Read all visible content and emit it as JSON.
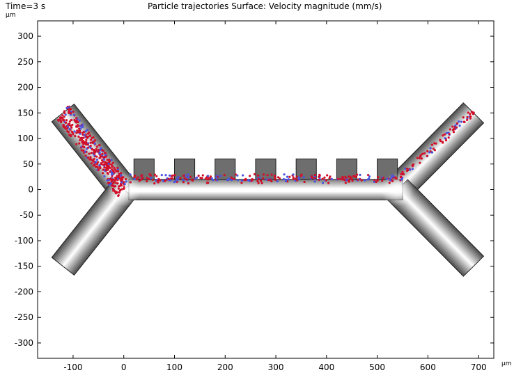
{
  "header": {
    "time": "Time=3 s",
    "title": "Particle trajectories  Surface: Velocity magnitude (mm/s)"
  },
  "chart_data": {
    "type": "surface",
    "title": "Particle trajectories  Surface: Velocity magnitude (mm/s)",
    "time_label": "Time=3 s",
    "x_unit": "µm",
    "y_unit": "µm",
    "xlim": [
      -170,
      730
    ],
    "ylim": [
      -330,
      330
    ],
    "x_ticks": [
      -100,
      0,
      100,
      200,
      300,
      400,
      500,
      600,
      700
    ],
    "y_ticks": [
      300,
      250,
      200,
      150,
      100,
      50,
      0,
      -50,
      -100,
      -150,
      -200,
      -250,
      -300
    ],
    "grid": false,
    "geometry": {
      "channel_half_height": 20,
      "side_chamber_top": 60,
      "side_chambers": [
        {
          "x_start": 20,
          "x_end": 60
        },
        {
          "x_start": 100,
          "x_end": 140
        },
        {
          "x_start": 180,
          "x_end": 220
        },
        {
          "x_start": 260,
          "x_end": 300
        },
        {
          "x_start": 340,
          "x_end": 380
        },
        {
          "x_start": 420,
          "x_end": 460
        },
        {
          "x_start": 500,
          "x_end": 540
        }
      ],
      "branches": [
        {
          "name": "upper-left inlet",
          "from": [
            0,
            0
          ],
          "to": [
            -120,
            150
          ]
        },
        {
          "name": "lower-left inlet",
          "from": [
            0,
            0
          ],
          "to": [
            -120,
            -150
          ]
        },
        {
          "name": "upper-right outlet",
          "from": [
            540,
            0
          ],
          "to": [
            690,
            150
          ]
        },
        {
          "name": "lower-right outlet",
          "from": [
            540,
            0
          ],
          "to": [
            690,
            -150
          ]
        }
      ]
    },
    "colors": {
      "fast_flow": "#ffffff",
      "slow_flow": "#6e6e6e",
      "particles_primary": "#d0102a",
      "particles_secondary": "#4a52e0",
      "outline": "#222222"
    }
  }
}
